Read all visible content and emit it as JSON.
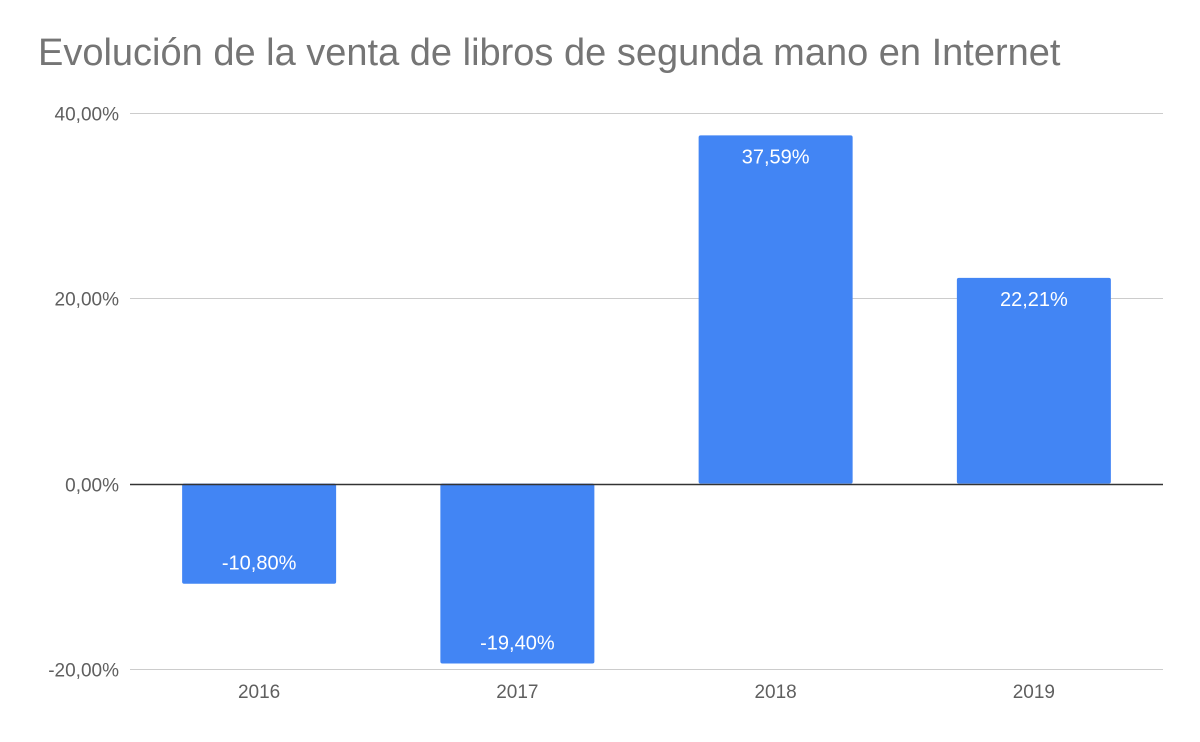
{
  "chart_data": {
    "type": "bar",
    "title": "Evolución de la venta de libros de segunda mano en Internet",
    "categories": [
      "2016",
      "2017",
      "2018",
      "2019"
    ],
    "values": [
      -10.8,
      -19.4,
      37.59,
      22.21
    ],
    "data_labels": [
      "-10,80%",
      "-19,40%",
      "37,59%",
      "22,21%"
    ],
    "y_ticks": [
      40,
      20,
      0,
      -20
    ],
    "y_tick_labels": [
      "40,00%",
      "20,00%",
      "0,00%",
      "-20,00%"
    ],
    "ylim": [
      -20,
      40
    ],
    "grid": true,
    "legend": "none",
    "colors": {
      "bar": "#4285f4",
      "grid": "#cccccc",
      "zero_line": "#333333"
    }
  }
}
